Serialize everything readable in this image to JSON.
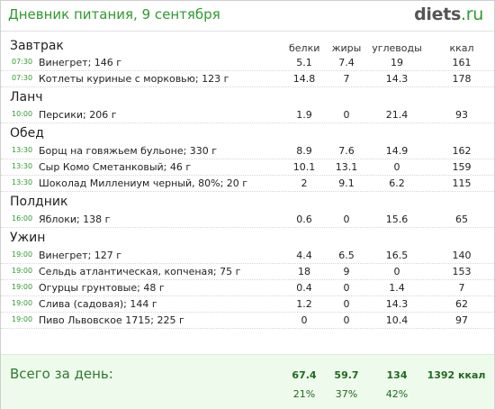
{
  "header": {
    "title": "Дневник питания, 9 сентября",
    "logo_main": "diets",
    "logo_tld": ".ru"
  },
  "columns": {
    "protein": "белки",
    "fat": "жиры",
    "carbs": "углеводы",
    "kcal": "ккал"
  },
  "meals": [
    {
      "name": "Завтрак",
      "items": [
        {
          "time": "07:30",
          "name": "Винегрет; 146 г",
          "protein": "5.1",
          "fat": "7.4",
          "carbs": "19",
          "kcal": "161"
        },
        {
          "time": "07:30",
          "name": "Котлеты куриные с морковью; 123 г",
          "protein": "14.8",
          "fat": "7",
          "carbs": "14.3",
          "kcal": "178"
        }
      ]
    },
    {
      "name": "Ланч",
      "items": [
        {
          "time": "10:00",
          "name": "Персики; 206 г",
          "protein": "1.9",
          "fat": "0",
          "carbs": "21.4",
          "kcal": "93"
        }
      ]
    },
    {
      "name": "Обед",
      "items": [
        {
          "time": "13:30",
          "name": "Борщ на говяжьем бульоне; 330 г",
          "protein": "8.9",
          "fat": "7.6",
          "carbs": "14.9",
          "kcal": "162"
        },
        {
          "time": "13:30",
          "name": "Сыр Комо Сметанковый; 46 г",
          "protein": "10.1",
          "fat": "13.1",
          "carbs": "0",
          "kcal": "159"
        },
        {
          "time": "13:30",
          "name": "Шоколад Миллениум черный, 80%; 20 г",
          "protein": "2",
          "fat": "9.1",
          "carbs": "6.2",
          "kcal": "115"
        }
      ]
    },
    {
      "name": "Полдник",
      "items": [
        {
          "time": "16:00",
          "name": "Яблоки; 138 г",
          "protein": "0.6",
          "fat": "0",
          "carbs": "15.6",
          "kcal": "65"
        }
      ]
    },
    {
      "name": "Ужин",
      "items": [
        {
          "time": "19:00",
          "name": "Винегрет; 127 г",
          "protein": "4.4",
          "fat": "6.5",
          "carbs": "16.5",
          "kcal": "140"
        },
        {
          "time": "19:00",
          "name": "Сельдь атлантическая, копченая; 75 г",
          "protein": "18",
          "fat": "9",
          "carbs": "0",
          "kcal": "153"
        },
        {
          "time": "19:00",
          "name": "Огурцы грунтовые; 48 г",
          "protein": "0.4",
          "fat": "0",
          "carbs": "1.4",
          "kcal": "7"
        },
        {
          "time": "19:00",
          "name": "Слива (садовая); 144 г",
          "protein": "1.2",
          "fat": "0",
          "carbs": "14.3",
          "kcal": "62"
        },
        {
          "time": "19:00",
          "name": "Пиво Львовское 1715; 225 г",
          "protein": "0",
          "fat": "0",
          "carbs": "10.4",
          "kcal": "97"
        }
      ]
    }
  ],
  "totals": {
    "label": "Всего за день:",
    "protein": "67.4",
    "fat": "59.7",
    "carbs": "134",
    "kcal": "1392 ккал",
    "protein_pct": "21%",
    "fat_pct": "37%",
    "carbs_pct": "42%"
  },
  "colors": {
    "accent": "#2f9a2f",
    "totals_bg": "#eefaec"
  }
}
